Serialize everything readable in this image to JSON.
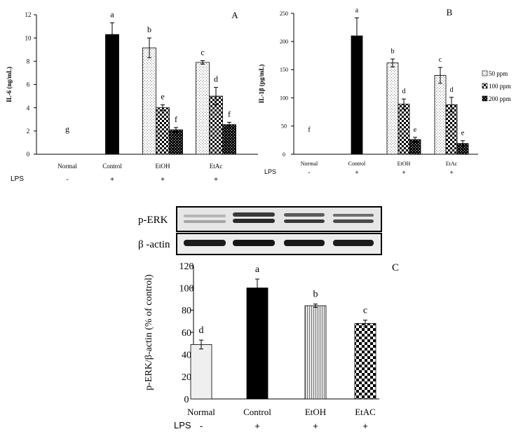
{
  "chart_data": [
    {
      "panel": "A",
      "type": "bar",
      "ylabel": "IL-6 (ng/mL)",
      "ylim": [
        0,
        12
      ],
      "yticks": [
        0,
        2,
        4,
        6,
        8,
        10,
        12
      ],
      "grid": false,
      "categories": [
        "Normal",
        "Control",
        "EtOH",
        "EtAc"
      ],
      "lps_label": "LPS",
      "lps": [
        "-",
        "+",
        "+",
        "+"
      ],
      "groups": [
        {
          "category": "Normal",
          "bars": [
            {
              "value": 0,
              "error": 0,
              "letter": "g",
              "pattern": "none"
            }
          ]
        },
        {
          "category": "Control",
          "bars": [
            {
              "value": 10.3,
              "error": 1.0,
              "letter": "a",
              "pattern": "solid"
            }
          ]
        },
        {
          "category": "EtOH",
          "bars": [
            {
              "value": 9.15,
              "error": 0.85,
              "letter": "b",
              "pattern": "dots-light"
            },
            {
              "value": 4.0,
              "error": 0.25,
              "letter": "e",
              "pattern": "checker"
            },
            {
              "value": 2.1,
              "error": 0.2,
              "letter": "f",
              "pattern": "dots-dark"
            }
          ]
        },
        {
          "category": "EtAc",
          "bars": [
            {
              "value": 7.9,
              "error": 0.15,
              "letter": "c",
              "pattern": "dots-light"
            },
            {
              "value": 5.0,
              "error": 0.75,
              "letter": "d",
              "pattern": "checker"
            },
            {
              "value": 2.55,
              "error": 0.2,
              "letter": "f",
              "pattern": "dots-dark"
            }
          ]
        }
      ]
    },
    {
      "panel": "B",
      "type": "bar",
      "ylabel": "IL-1β (pg/mL)",
      "ylim": [
        0,
        250
      ],
      "yticks": [
        0,
        50,
        100,
        150,
        200,
        250
      ],
      "grid": false,
      "categories": [
        "Normal",
        "Control",
        "EtOH",
        "EtAc"
      ],
      "lps_label": "LPS",
      "lps": [
        "-",
        "+",
        "+",
        "+"
      ],
      "legend_position": "right",
      "legend": [
        {
          "name": "50 ppm",
          "pattern": "dots-light"
        },
        {
          "name": "100 ppm",
          "pattern": "checker"
        },
        {
          "name": "200 ppm",
          "pattern": "dots-dark"
        }
      ],
      "groups": [
        {
          "category": "Normal",
          "bars": [
            {
              "value": 0,
              "error": 0,
              "letter": "f",
              "pattern": "none"
            }
          ]
        },
        {
          "category": "Control",
          "bars": [
            {
              "value": 210,
              "error": 32,
              "letter": "a",
              "pattern": "solid"
            }
          ]
        },
        {
          "category": "EtOH",
          "bars": [
            {
              "value": 162,
              "error": 7,
              "letter": "b",
              "pattern": "dots-light"
            },
            {
              "value": 89,
              "error": 9,
              "letter": "d",
              "pattern": "checker"
            },
            {
              "value": 26,
              "error": 4,
              "letter": "e",
              "pattern": "dots-dark"
            }
          ]
        },
        {
          "category": "EtAc",
          "bars": [
            {
              "value": 140,
              "error": 14,
              "letter": "c",
              "pattern": "dots-light"
            },
            {
              "value": 88,
              "error": 13,
              "letter": "d",
              "pattern": "checker"
            },
            {
              "value": 19,
              "error": 5,
              "letter": "e",
              "pattern": "dots-dark"
            }
          ]
        }
      ]
    },
    {
      "panel": "C",
      "type": "bar",
      "ylabel": "p-ERK/β-actin (% of control)",
      "ylim": [
        0,
        120
      ],
      "yticks": [
        0,
        20,
        40,
        60,
        80,
        100,
        120
      ],
      "grid": false,
      "categories": [
        "Normal",
        "Control",
        "EtOH",
        "EtAC"
      ],
      "lps_label": "LPS",
      "lps": [
        "-",
        "+",
        "+",
        "+"
      ],
      "blot_labels": [
        "p-ERK",
        "β -actin"
      ],
      "groups": [
        {
          "category": "Normal",
          "bars": [
            {
              "value": 49,
              "error": 4,
              "letter": "d",
              "pattern": "lightgray"
            }
          ]
        },
        {
          "category": "Control",
          "bars": [
            {
              "value": 100,
              "error": 8,
              "letter": "a",
              "pattern": "solid"
            }
          ]
        },
        {
          "category": "EtOH",
          "bars": [
            {
              "value": 84,
              "error": 1.5,
              "letter": "b",
              "pattern": "vlines"
            }
          ]
        },
        {
          "category": "EtAC",
          "bars": [
            {
              "value": 68,
              "error": 3,
              "letter": "c",
              "pattern": "checker-big"
            }
          ]
        }
      ]
    }
  ]
}
